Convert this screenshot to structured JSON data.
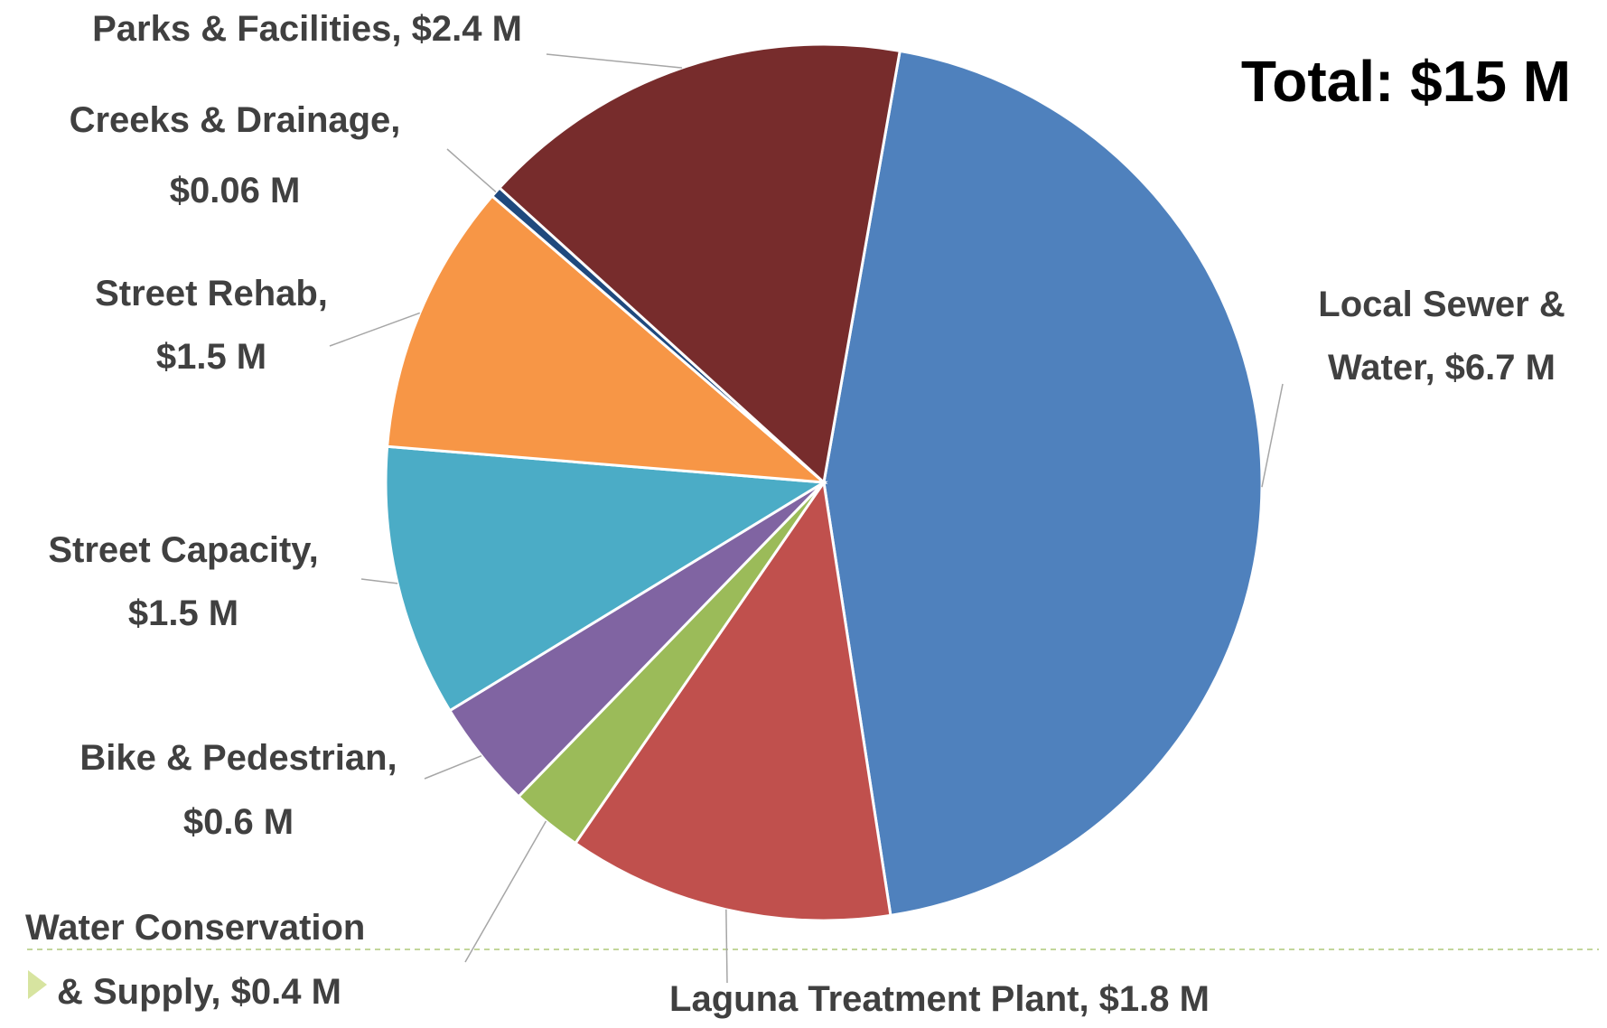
{
  "chart_data": {
    "type": "pie",
    "annotation": "Total: $15 M",
    "labels": [
      [
        "Local Sewer &",
        "Water, $6.7 M"
      ],
      [
        "Laguna Treatment Plant, $1.8 M"
      ],
      [
        "Water Conservation",
        "& Supply, $0.4 M"
      ],
      [
        "Bike & Pedestrian,",
        "$0.6 M"
      ],
      [
        "Street Capacity,",
        "$1.5 M"
      ],
      [
        "Street Rehab,",
        "$1.5 M"
      ],
      [
        "Creeks & Drainage,",
        "$0.06 M"
      ],
      [
        "Parks & Facilities, $2.4 M"
      ]
    ],
    "values": [
      6.7,
      1.8,
      0.4,
      0.6,
      1.5,
      1.5,
      0.06,
      2.4
    ],
    "colors": [
      "#4f81bd",
      "#c0504d",
      "#9bbb59",
      "#8064a2",
      "#4bacc6",
      "#f79646",
      "#1f497d",
      "#772c2c"
    ]
  }
}
